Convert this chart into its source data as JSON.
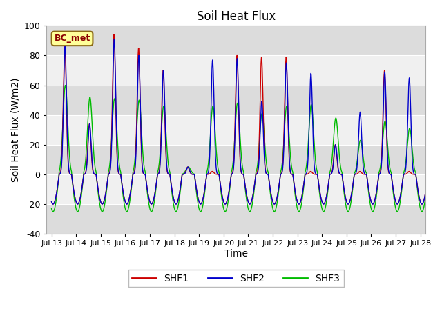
{
  "title": "Soil Heat Flux",
  "ylabel": "Soil Heat Flux (W/m2)",
  "xlabel": "Time",
  "ylim": [
    -40,
    100
  ],
  "yticks": [
    -40,
    -20,
    0,
    20,
    40,
    60,
    80,
    100
  ],
  "annotation": "BC_met",
  "annotation_bg": "#FFFF99",
  "annotation_border": "#8B6914",
  "line_colors": [
    "#CC0000",
    "#0000CC",
    "#00BB00"
  ],
  "line_labels": [
    "SHF1",
    "SHF2",
    "SHF3"
  ],
  "line_width": 1.0,
  "background_color": "#FFFFFF",
  "plot_bg_light": "#F0F0F0",
  "plot_bg_dark": "#DCDCDC",
  "n_days": 16,
  "start_day": 13,
  "peaks_shf1": [
    86,
    34,
    94,
    85,
    70,
    5,
    2,
    80,
    79,
    79,
    2,
    20,
    2,
    70,
    2,
    2
  ],
  "peaks_shf2": [
    86,
    34,
    91,
    80,
    70,
    5,
    77,
    78,
    49,
    75,
    68,
    20,
    42,
    69,
    65,
    2
  ],
  "peaks_shf3": [
    60,
    52,
    51,
    50,
    46,
    5,
    46,
    48,
    41,
    46,
    47,
    38,
    23,
    36,
    31,
    2
  ],
  "night_min": -20,
  "night_min_shf3": -25
}
